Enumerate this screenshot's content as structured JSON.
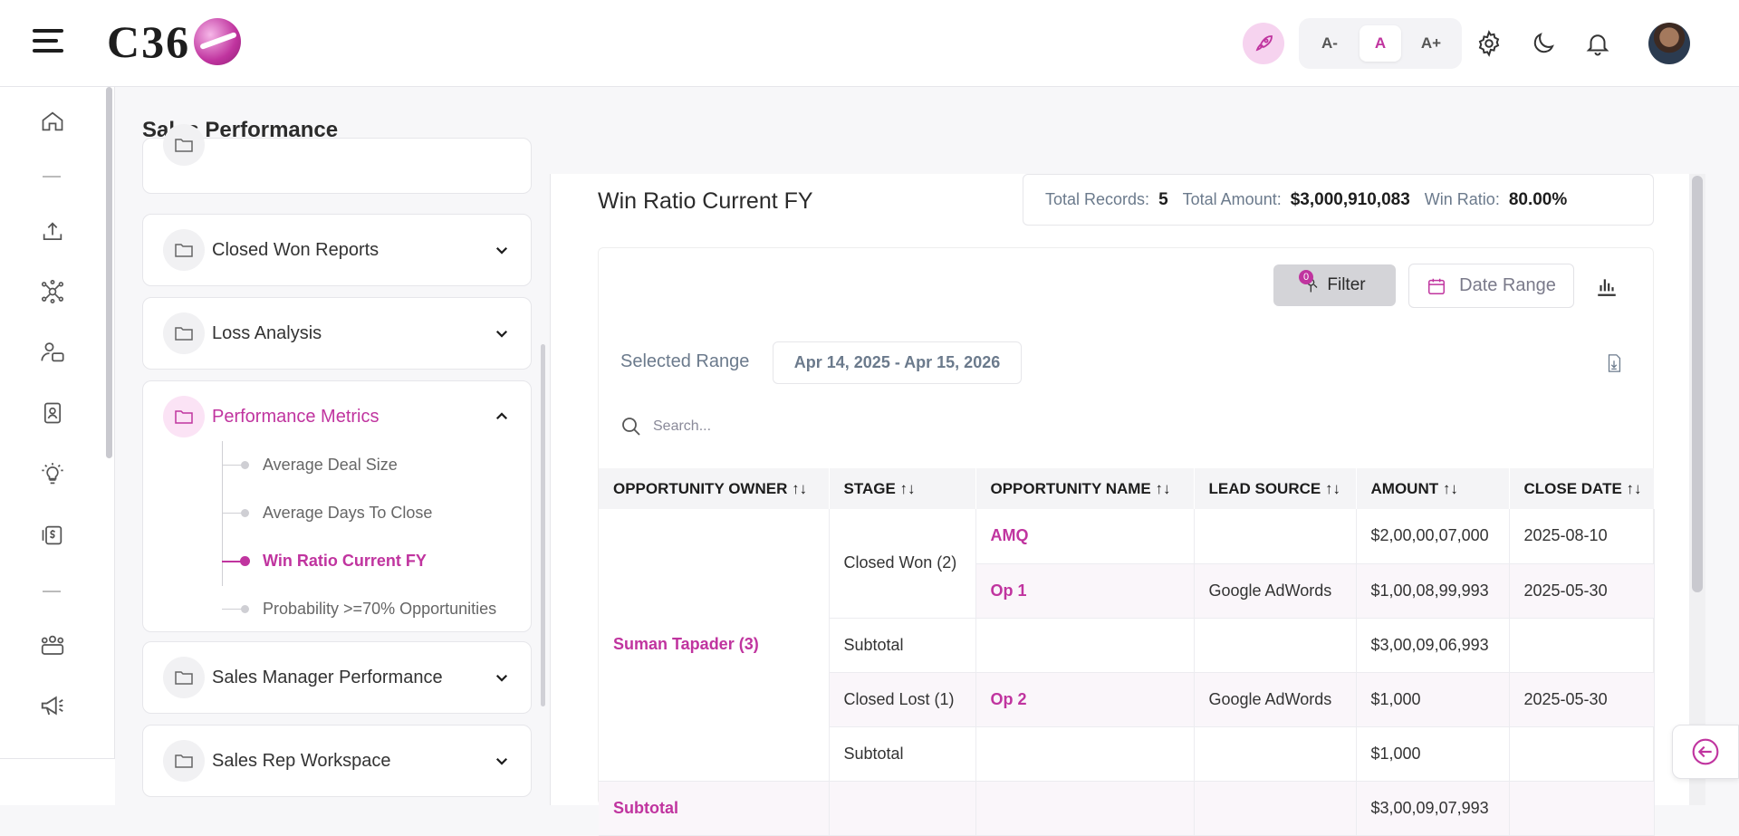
{
  "header": {
    "logo_text": "C36",
    "font_size_buttons": [
      "A-",
      "A",
      "A+"
    ]
  },
  "page": {
    "title": "Sales Performance"
  },
  "menu": {
    "sections": [
      {
        "label": "Closed Won Reports",
        "expanded": false
      },
      {
        "label": "Loss Analysis",
        "expanded": false
      },
      {
        "label": "Performance Metrics",
        "expanded": true,
        "items": [
          "Average Deal Size",
          "Average Days To Close",
          "Win Ratio Current FY",
          "Probability >=70% Opportunities"
        ],
        "active_item": "Win Ratio Current FY"
      },
      {
        "label": "Sales Manager Performance",
        "expanded": false
      },
      {
        "label": "Sales Rep Workspace",
        "expanded": false
      }
    ]
  },
  "report": {
    "title": "Win Ratio Current FY",
    "summary": {
      "total_records_label": "Total Records:",
      "total_records": "5",
      "total_amount_label": "Total Amount:",
      "total_amount": "$3,000,910,083",
      "win_ratio_label": "Win Ratio:",
      "win_ratio": "80.00%"
    },
    "filter_label": "Filter",
    "filter_count": "0",
    "date_range_label": "Date Range",
    "selected_range_label": "Selected Range",
    "selected_range_value": "Apr 14, 2025 - Apr 15, 2026",
    "search_placeholder": "Search...",
    "columns": [
      "OPPORTUNITY OWNER",
      "STAGE",
      "OPPORTUNITY NAME",
      "LEAD SOURCE",
      "AMOUNT",
      "CLOSE DATE"
    ],
    "owner": "Suman Tapader (3)",
    "stage_won": "Closed Won (2)",
    "stage_lost": "Closed Lost (1)",
    "rows": [
      {
        "name": "AMQ",
        "lead_source": "",
        "amount": "$2,00,00,07,000",
        "close_date": "2025-08-10"
      },
      {
        "name": "Op 1",
        "lead_source": "Google AdWords",
        "amount": "$1,00,08,99,993",
        "close_date": "2025-05-30"
      },
      {
        "name": "Op 2",
        "lead_source": "Google AdWords",
        "amount": "$1,000",
        "close_date": "2025-05-30"
      }
    ],
    "subtotal_label": "Subtotal",
    "subtotal_won": "$3,00,09,06,993",
    "subtotal_lost": "$1,000",
    "grand_subtotal_label": "Subtotal",
    "grand_subtotal": "$3,00,09,07,993"
  },
  "colors": {
    "accent": "#c0349f",
    "accent_light": "#fbe3f5"
  }
}
